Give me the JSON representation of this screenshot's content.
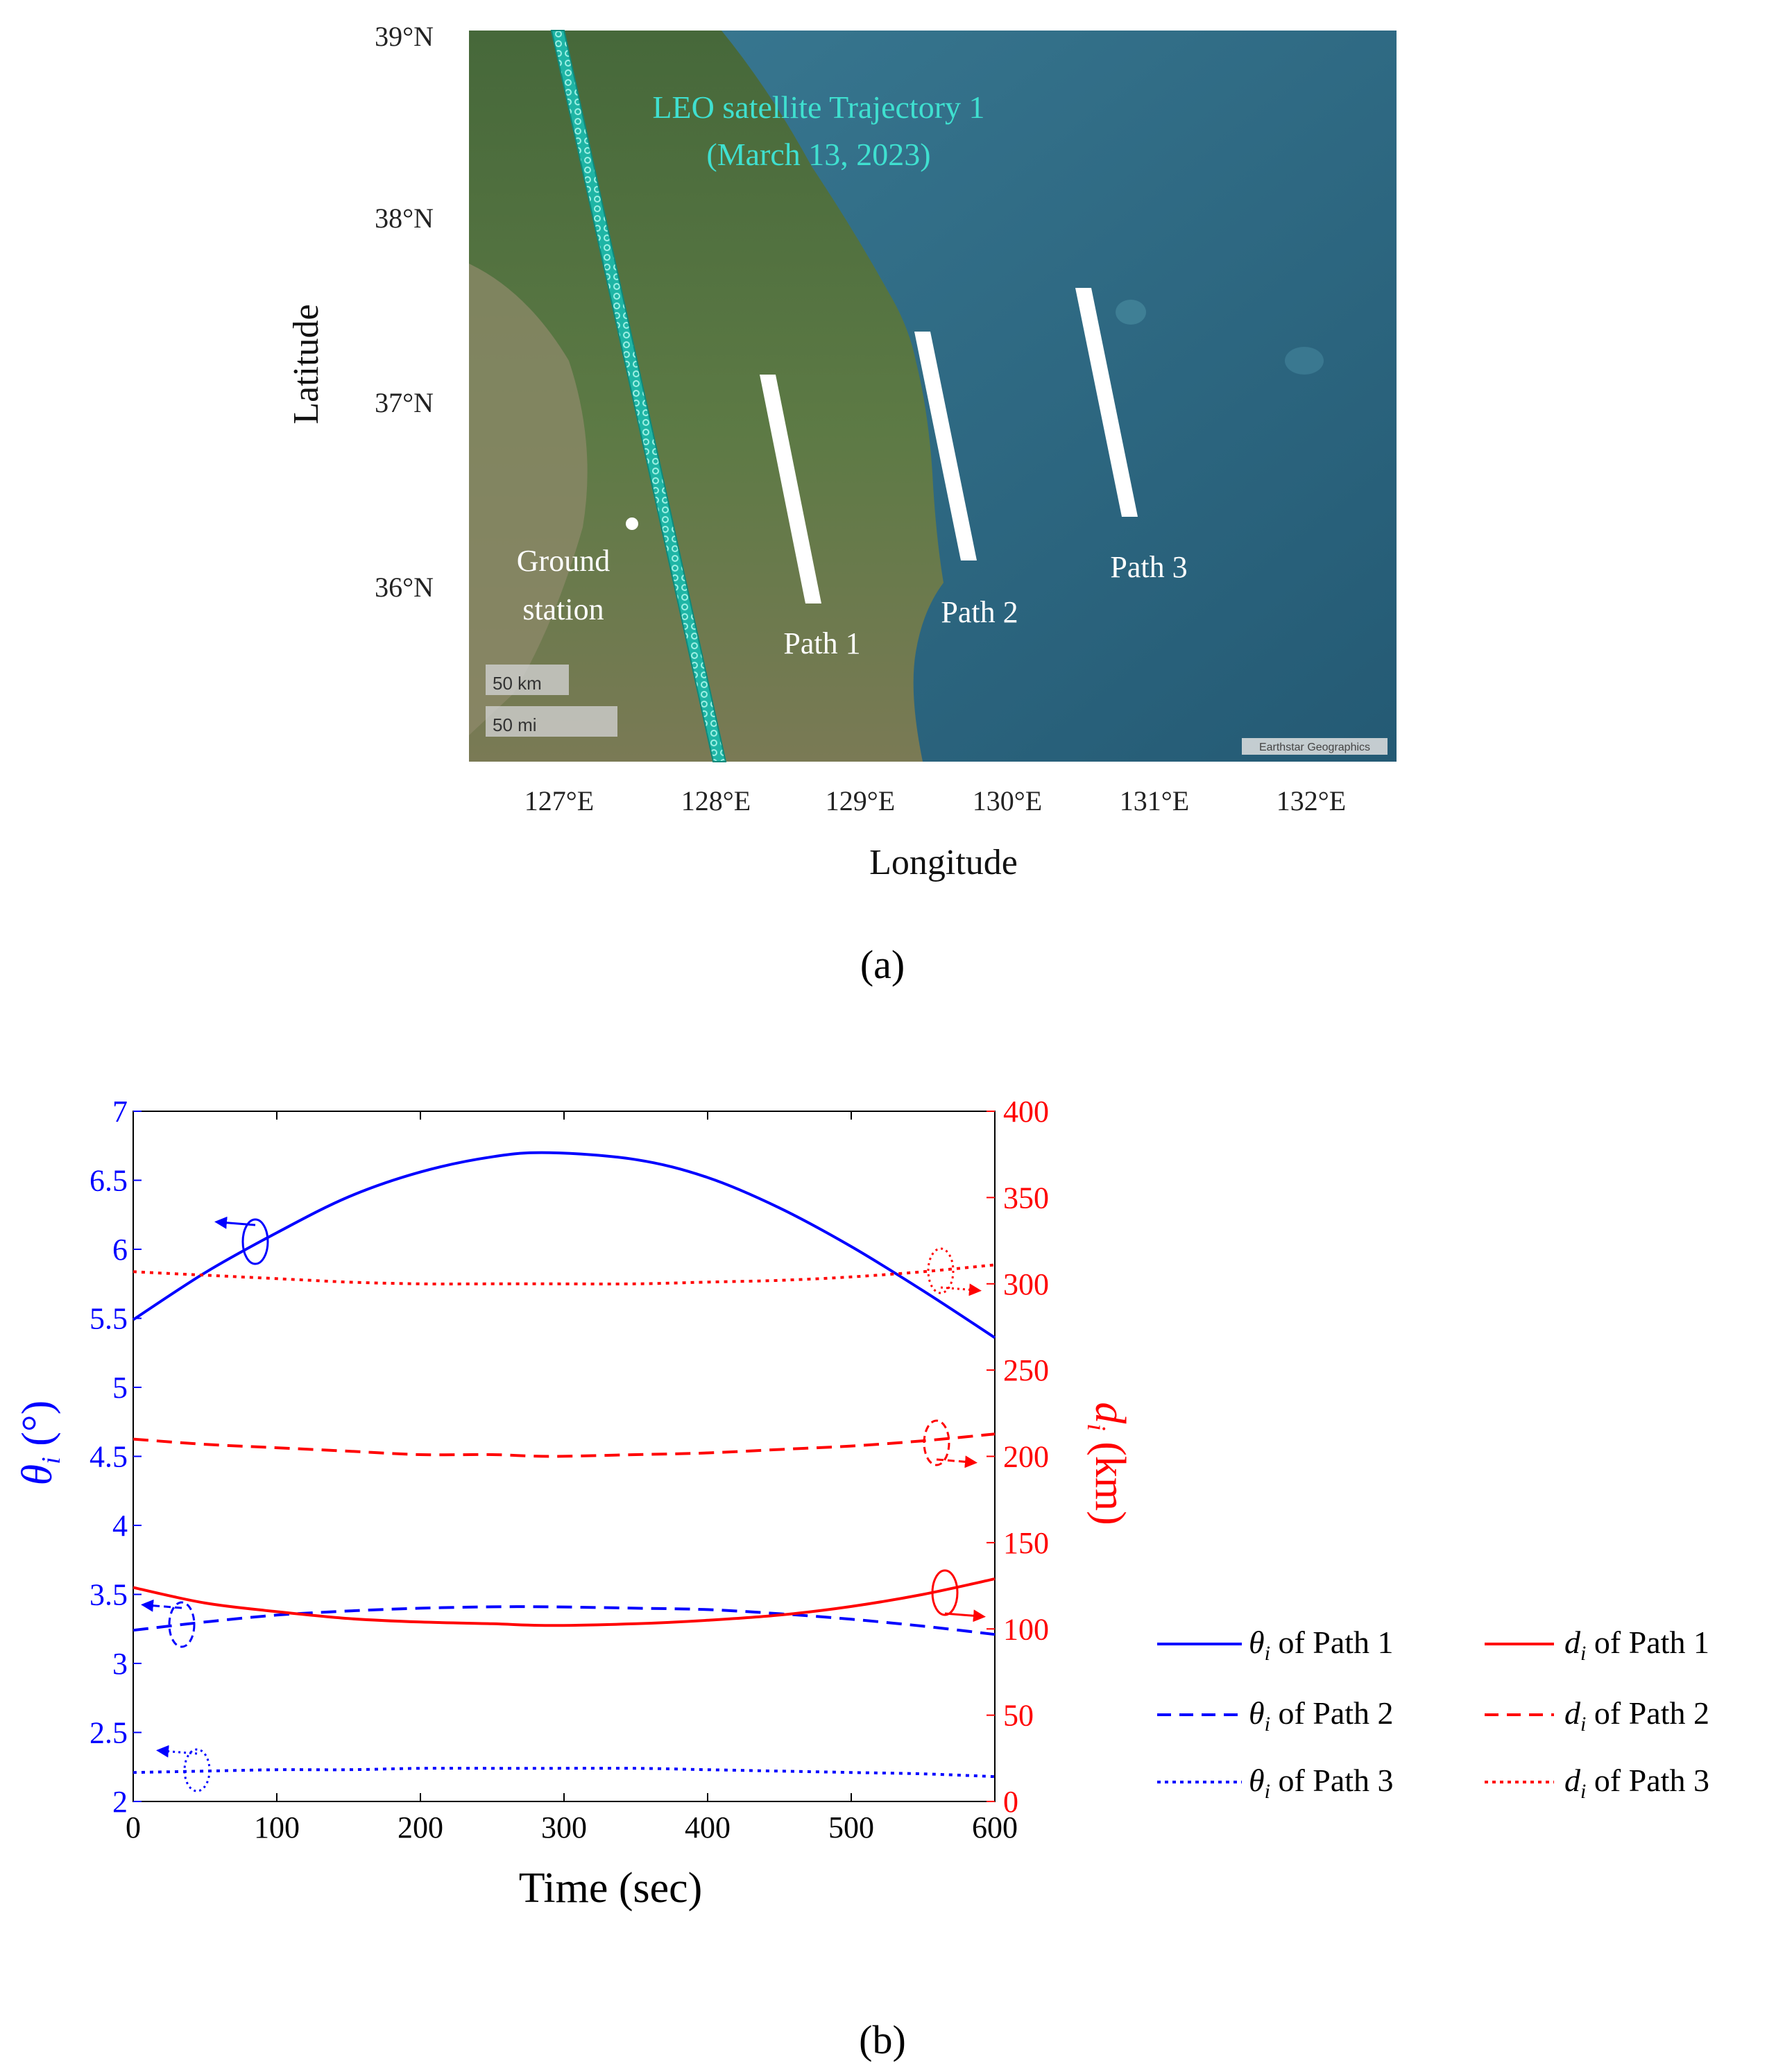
{
  "figure": {
    "panel_a": "(a)",
    "panel_b": "(b)"
  },
  "map": {
    "ylabel": "Latitude",
    "xlabel": "Longitude",
    "lat_ticks": [
      "39°N",
      "38°N",
      "37°N",
      "36°N"
    ],
    "lon_ticks": [
      "127°E",
      "128°E",
      "129°E",
      "130°E",
      "131°E",
      "132°E"
    ],
    "trajectory_label_line1": "LEO satellite Trajectory  1",
    "trajectory_label_line2": "(March 13, 2023)",
    "ground_station_line1": "Ground",
    "ground_station_line2": "station",
    "path1": "Path 1",
    "path2": "Path 2",
    "path3": "Path 3",
    "scale_km": "50 km",
    "scale_mi": "50 mi",
    "attribution": "Earthstar Geographics",
    "colors": {
      "trajectory": "#2ec4b6",
      "paths": "#ffffff",
      "land": "#4f6b3a",
      "sea": "#2f6b84"
    }
  },
  "chart_data": {
    "type": "line",
    "xlabel": "Time (sec)",
    "ylabel_left_sym": "θ",
    "ylabel_left_sub": "i",
    "ylabel_left_unit": " (°)",
    "ylabel_right_sym": "d",
    "ylabel_right_sub": "i",
    "ylabel_right_unit": " (km)",
    "xlim": [
      0,
      600
    ],
    "ylim_left": [
      2,
      7
    ],
    "ylim_right": [
      0,
      400
    ],
    "x_ticks": [
      "0",
      "100",
      "200",
      "300",
      "400",
      "500",
      "600"
    ],
    "y_left_ticks": [
      "2",
      "2.5",
      "3",
      "3.5",
      "4",
      "4.5",
      "5",
      "5.5",
      "6",
      "6.5",
      "7"
    ],
    "y_right_ticks": [
      "0",
      "50",
      "100",
      "150",
      "200",
      "250",
      "300",
      "350",
      "400"
    ],
    "x": [
      0,
      50,
      100,
      150,
      200,
      250,
      290,
      350,
      400,
      450,
      500,
      550,
      600
    ],
    "series": [
      {
        "name": "of Path 1",
        "sym": "θ",
        "axis": "left",
        "color": "#0000ff",
        "dash": "solid",
        "values": [
          5.49,
          5.83,
          6.12,
          6.38,
          6.56,
          6.67,
          6.7,
          6.65,
          6.52,
          6.3,
          6.02,
          5.7,
          5.36
        ]
      },
      {
        "name": "of  Path 2",
        "sym": "θ",
        "axis": "left",
        "color": "#0000ff",
        "dash": "dashed",
        "values": [
          3.24,
          3.3,
          3.35,
          3.38,
          3.4,
          3.41,
          3.41,
          3.4,
          3.39,
          3.36,
          3.32,
          3.27,
          3.21
        ]
      },
      {
        "name": "of  Path 3",
        "sym": "θ",
        "axis": "left",
        "color": "#0000ff",
        "dash": "dotted",
        "values": [
          2.21,
          2.22,
          2.23,
          2.23,
          2.24,
          2.24,
          2.24,
          2.24,
          2.23,
          2.22,
          2.21,
          2.2,
          2.18
        ]
      },
      {
        "name": "of Path 1",
        "sym": "d",
        "axis": "right",
        "color": "#ff0000",
        "dash": "solid",
        "values": [
          124,
          115,
          110,
          106,
          104,
          103,
          102,
          103,
          105,
          108,
          113,
          120,
          129
        ]
      },
      {
        "name": "of Path 2",
        "sym": "d",
        "axis": "right",
        "color": "#ff0000",
        "dash": "dashed",
        "values": [
          210,
          207,
          205,
          203,
          201,
          201,
          200,
          201,
          202,
          204,
          206,
          209,
          213
        ]
      },
      {
        "name": "of Path 3",
        "sym": "d",
        "axis": "right",
        "color": "#ff0000",
        "dash": "dotted",
        "values": [
          307,
          305,
          303,
          301,
          300,
          300,
          300,
          300,
          301,
          302,
          304,
          307,
          311
        ]
      }
    ],
    "legend_sub": "i"
  }
}
